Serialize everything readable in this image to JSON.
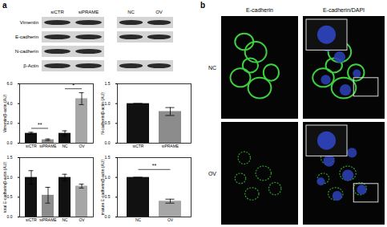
{
  "panel_labels": [
    "a",
    "b"
  ],
  "blot": {
    "groups": [
      [
        "siCTR",
        "siPRAME"
      ],
      [
        "NC",
        "OV"
      ]
    ],
    "rows": [
      {
        "label": "Vimentin",
        "lanes": [
          "siCTR",
          "siPRAME",
          "NC",
          "OV"
        ]
      },
      {
        "label": "E-cadherin",
        "lanes": [
          "siCTR",
          "siPRAME",
          "NC",
          "OV"
        ]
      },
      {
        "label": "N-cadherin",
        "lanes": [
          "siCTR",
          "siPRAME"
        ]
      },
      {
        "label": "β-Actin",
        "lanes": [
          "siCTR",
          "siPRAME",
          "NC",
          "OV"
        ]
      }
    ]
  },
  "chart_data": [
    {
      "type": "bar",
      "ylabel": "Vimentin/β-actin (AU)",
      "categories": [
        "siCTR",
        "siPRAME",
        "NC",
        "OV"
      ],
      "values": [
        1,
        0.35,
        1,
        4.5
      ],
      "errors": [
        0.1,
        0.08,
        0.25,
        0.6
      ],
      "colors": [
        "#111111",
        "#8c8c8c",
        "#111111",
        "#a6a6a6"
      ],
      "ylim": [
        0,
        6
      ],
      "yticks": [
        0,
        2,
        4,
        6
      ],
      "annotations": [
        {
          "text": "**",
          "from": "siCTR",
          "to": "siPRAME",
          "y": 1.5
        },
        {
          "text": "*",
          "from": "NC",
          "to": "OV",
          "y": 5.5
        }
      ]
    },
    {
      "type": "bar",
      "ylabel": "N-cadherin/β-actin (AU)",
      "categories": [
        "siCTR",
        "siPRAME"
      ],
      "values": [
        1,
        0.8
      ],
      "errors": [
        0,
        0.1
      ],
      "colors": [
        "#111111",
        "#8c8c8c"
      ],
      "ylim": [
        0,
        1.5
      ],
      "yticks": [
        0,
        0.5,
        1,
        1.5
      ]
    },
    {
      "type": "bar",
      "ylabel": "total E-cadherin/β-actin (AU)",
      "categories": [
        "siCTR",
        "siPRAME",
        "NC",
        "OV"
      ],
      "values": [
        1,
        0.55,
        1,
        0.78
      ],
      "errors": [
        0.17,
        0.2,
        0.08,
        0.05
      ],
      "colors": [
        "#111111",
        "#8c8c8c",
        "#111111",
        "#a6a6a6"
      ],
      "ylim": [
        0,
        1.5
      ],
      "yticks": [
        0,
        0.5,
        1,
        1.5
      ]
    },
    {
      "type": "bar",
      "ylabel": "mature E-cadherin/β-actin (AU)",
      "categories": [
        "NC",
        "OV"
      ],
      "values": [
        1,
        0.4
      ],
      "errors": [
        0,
        0.05
      ],
      "colors": [
        "#111111",
        "#a6a6a6"
      ],
      "ylim": [
        0,
        1.5
      ],
      "yticks": [
        0,
        0.5,
        1,
        1.5
      ],
      "annotations": [
        {
          "text": "**",
          "from": "NC",
          "to": "OV",
          "y": 1.2
        }
      ]
    }
  ],
  "micrographs": {
    "columns": [
      "E-cadherin",
      "E-cadherin/DAPI"
    ],
    "rows": [
      "NC",
      "OV"
    ]
  }
}
